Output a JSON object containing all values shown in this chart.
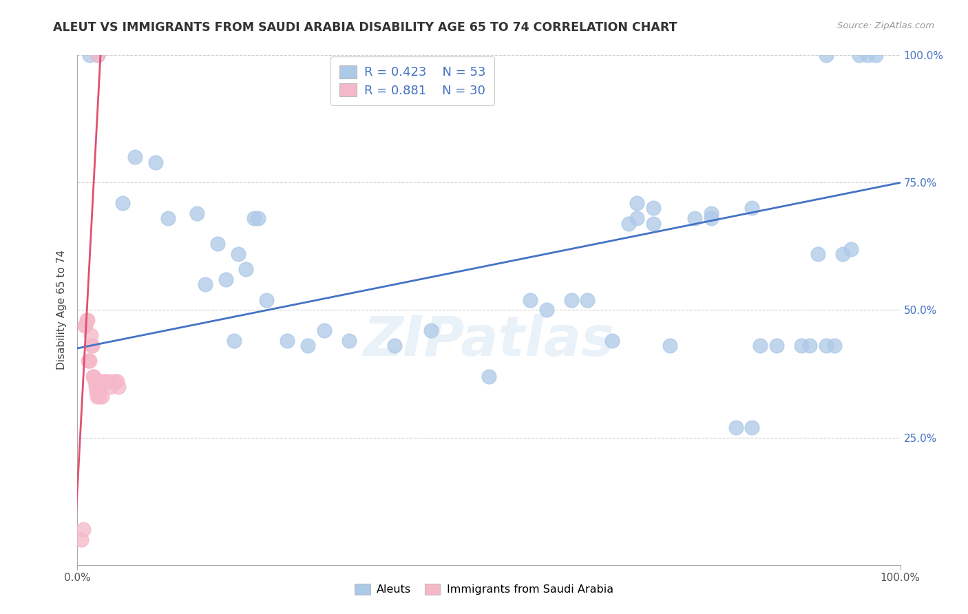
{
  "title": "ALEUT VS IMMIGRANTS FROM SAUDI ARABIA DISABILITY AGE 65 TO 74 CORRELATION CHART",
  "source": "Source: ZipAtlas.com",
  "ylabel": "Disability Age 65 to 74",
  "xlim": [
    0,
    100
  ],
  "ylim": [
    0,
    100
  ],
  "legend1_R": "0.423",
  "legend1_N": "53",
  "legend2_R": "0.881",
  "legend2_N": "30",
  "legend1_label": "Aleuts",
  "legend2_label": "Immigrants from Saudi Arabia",
  "aleut_color": "#adc9e8",
  "saudi_color": "#f5b8c8",
  "aleut_line_color": "#4472c4",
  "saudi_line_color": "#e05070",
  "watermark_text": "ZIPatlas",
  "background_color": "#ffffff",
  "grid_color": "#d0d0d0",
  "tick_color": "#4472c4",
  "title_color": "#333333",
  "source_color": "#999999",
  "aleut_x": [
    1.5,
    2.5,
    5.5,
    7.0,
    9.5,
    11.0,
    14.5,
    15.5,
    17.0,
    18.0,
    19.0,
    19.5,
    20.5,
    21.5,
    22.0,
    23.0,
    25.5,
    28.0,
    30.0,
    33.0,
    38.5,
    43.0,
    50.0,
    55.0,
    57.0,
    60.0,
    62.0,
    65.0,
    67.0,
    68.0,
    70.0,
    72.0,
    75.0,
    77.0,
    80.0,
    82.0,
    83.0,
    85.0,
    88.0,
    89.0,
    90.0,
    91.0,
    92.0,
    93.0,
    94.0,
    95.0,
    96.0,
    97.0,
    68.0,
    70.0,
    77.0,
    82.0,
    91.0
  ],
  "aleut_y": [
    100.0,
    100.0,
    71.0,
    80.0,
    79.0,
    68.0,
    69.0,
    55.0,
    63.0,
    56.0,
    44.0,
    61.0,
    58.0,
    68.0,
    68.0,
    52.0,
    44.0,
    43.0,
    46.0,
    44.0,
    43.0,
    46.0,
    37.0,
    52.0,
    50.0,
    52.0,
    52.0,
    44.0,
    67.0,
    68.0,
    67.0,
    43.0,
    68.0,
    68.0,
    27.0,
    27.0,
    43.0,
    43.0,
    43.0,
    43.0,
    61.0,
    43.0,
    43.0,
    61.0,
    62.0,
    100.0,
    100.0,
    100.0,
    71.0,
    70.0,
    69.0,
    70.0,
    100.0
  ],
  "saudi_x": [
    0.5,
    0.7,
    0.9,
    1.0,
    1.1,
    1.2,
    1.3,
    1.4,
    1.5,
    1.6,
    1.7,
    1.8,
    1.9,
    2.0,
    2.1,
    2.2,
    2.3,
    2.4,
    2.5,
    2.6,
    2.7,
    2.8,
    3.0,
    3.2,
    3.5,
    3.8,
    4.0,
    4.5,
    4.8,
    5.0
  ],
  "saudi_y": [
    5.0,
    7.0,
    47.0,
    47.0,
    48.0,
    48.0,
    40.0,
    40.0,
    40.0,
    45.0,
    43.0,
    43.0,
    37.0,
    37.0,
    36.0,
    35.0,
    34.0,
    33.0,
    100.0,
    33.0,
    35.0,
    36.0,
    33.0,
    36.0,
    36.0,
    36.0,
    35.0,
    36.0,
    36.0,
    35.0
  ],
  "aleut_line": [
    0,
    42.5,
    100,
    75.0
  ],
  "saudi_line": [
    -0.5,
    0.0,
    2.8,
    100.0
  ],
  "ytick_positions": [
    0,
    25,
    50,
    75,
    100
  ],
  "ytick_labels_left": [
    "",
    "",
    "",
    "",
    ""
  ],
  "ytick_labels_right": [
    "",
    "25.0%",
    "50.0%",
    "75.0%",
    "100.0%"
  ],
  "xtick_positions": [
    0,
    100
  ],
  "xtick_labels": [
    "0.0%",
    "100.0%"
  ]
}
